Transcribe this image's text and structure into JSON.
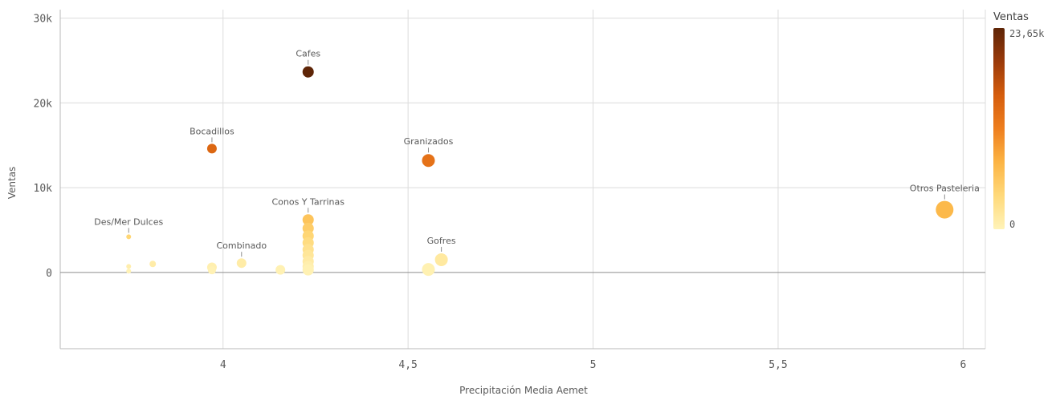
{
  "chart_data": {
    "type": "scatter",
    "xlabel": "Precipitación Media Aemet",
    "ylabel": "Ventas",
    "xlim": [
      3.56,
      6.06
    ],
    "ylim": [
      -9000,
      31000
    ],
    "x_ticks": [
      {
        "v": 4,
        "t": "4"
      },
      {
        "v": 4.5,
        "t": "4,5"
      },
      {
        "v": 5,
        "t": "5"
      },
      {
        "v": 5.5,
        "t": "5,5"
      },
      {
        "v": 6,
        "t": "6"
      }
    ],
    "y_ticks": [
      {
        "v": 0,
        "t": "0"
      },
      {
        "v": 10000,
        "t": "10k"
      },
      {
        "v": 20000,
        "t": "20k"
      },
      {
        "v": 30000,
        "t": "30k"
      }
    ],
    "grid": true,
    "legend": {
      "title": "Ventas",
      "position": "right",
      "max_label": "23,65k",
      "min_label": "0",
      "max_value": 23650,
      "min_value": 0,
      "colors": [
        "#fff3b8",
        "#ffd97a",
        "#fcb444",
        "#ee7e1e",
        "#d55d0d",
        "#9b3a0a",
        "#5e2507"
      ]
    },
    "points": [
      {
        "label": "Cafes",
        "x": 4.23,
        "y": 23650,
        "size": 7
      },
      {
        "label": "Bocadillos",
        "x": 3.97,
        "y": 14600,
        "size": 6
      },
      {
        "label": "Granizados",
        "x": 4.555,
        "y": 13200,
        "size": 8
      },
      {
        "label": "Otros Pasteleria",
        "x": 5.95,
        "y": 7400,
        "size": 11
      },
      {
        "label": "Conos Y Tarrinas",
        "x": 4.23,
        "y": 6200,
        "size": 7
      },
      {
        "label": "",
        "x": 4.23,
        "y": 5200,
        "size": 7
      },
      {
        "label": "",
        "x": 4.23,
        "y": 4300,
        "size": 7
      },
      {
        "label": "",
        "x": 4.23,
        "y": 3500,
        "size": 7
      },
      {
        "label": "",
        "x": 4.23,
        "y": 2700,
        "size": 7
      },
      {
        "label": "",
        "x": 4.23,
        "y": 2000,
        "size": 7
      },
      {
        "label": "",
        "x": 4.23,
        "y": 1300,
        "size": 7
      },
      {
        "label": "",
        "x": 4.23,
        "y": 700,
        "size": 7
      },
      {
        "label": "",
        "x": 4.23,
        "y": 300,
        "size": 7
      },
      {
        "label": "Des/Mer Dulces",
        "x": 3.745,
        "y": 4200,
        "size": 3
      },
      {
        "label": "Combinado",
        "x": 4.05,
        "y": 1100,
        "size": 6
      },
      {
        "label": "Gofres",
        "x": 4.59,
        "y": 1500,
        "size": 8
      },
      {
        "label": "",
        "x": 4.555,
        "y": 350,
        "size": 8
      },
      {
        "label": "",
        "x": 4.155,
        "y": 300,
        "size": 6
      },
      {
        "label": "",
        "x": 3.97,
        "y": 600,
        "size": 6
      },
      {
        "label": "",
        "x": 3.97,
        "y": 250,
        "size": 5
      },
      {
        "label": "",
        "x": 3.81,
        "y": 1000,
        "size": 4
      },
      {
        "label": "",
        "x": 3.745,
        "y": 700,
        "size": 3
      },
      {
        "label": "",
        "x": 3.745,
        "y": 150,
        "size": 3
      }
    ]
  }
}
